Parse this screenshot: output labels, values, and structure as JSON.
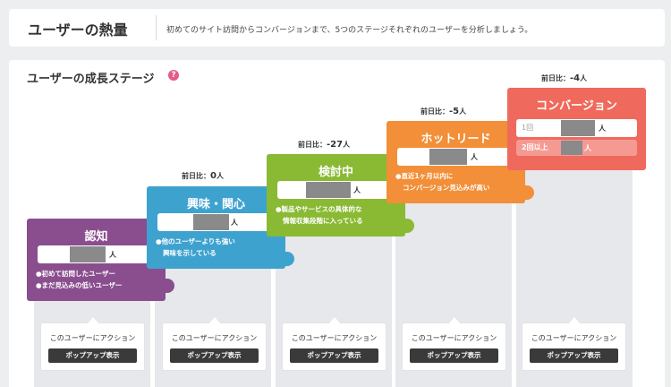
{
  "header": {
    "title": "ユーザーの熱量",
    "description": "初めてのサイト訪問からコンバージョンまで、5つのステージそれぞれのユーザーを分析しましょう。"
  },
  "panel": {
    "title": "ユーザーの成長ステージ",
    "help_glyph": "?"
  },
  "stages": [
    {
      "name": "認知",
      "color": "#8a4e8e",
      "unit": "人",
      "delta_label": "",
      "delta_value": "",
      "delta_unit": "",
      "notes": [
        "●初めて訪問したユーザー",
        "●まだ見込みの低いユーザー"
      ]
    },
    {
      "name": "興味・関心",
      "color": "#3ea2cf",
      "unit": "人",
      "delta_label": "前日比：",
      "delta_value": "0",
      "delta_unit": "人",
      "notes": [
        "●他のユーザーよりも強い",
        "興味を示している"
      ]
    },
    {
      "name": "検討中",
      "color": "#8ab933",
      "unit": "人",
      "delta_label": "前日比：",
      "delta_value": "-27",
      "delta_unit": "人",
      "notes": [
        "●製品やサービスの具体的な",
        "情報収集段階に入っている"
      ]
    },
    {
      "name": "ホットリード",
      "color": "#f28f38",
      "unit": "人",
      "delta_label": "前日比：",
      "delta_value": "-5",
      "delta_unit": "人",
      "notes": [
        "●直近1ヶ月以内に",
        "コンバージョン見込みが高い"
      ]
    },
    {
      "name": "コンバージョン",
      "color": "#ef6a5d",
      "unit": "人",
      "delta_label": "前日比：",
      "delta_value": "-4",
      "delta_unit": "人",
      "row1_label": "1回",
      "row2_label": "2回以上"
    }
  ],
  "action": {
    "label": "このユーザーにアクション",
    "button": "ポップアップ表示"
  }
}
